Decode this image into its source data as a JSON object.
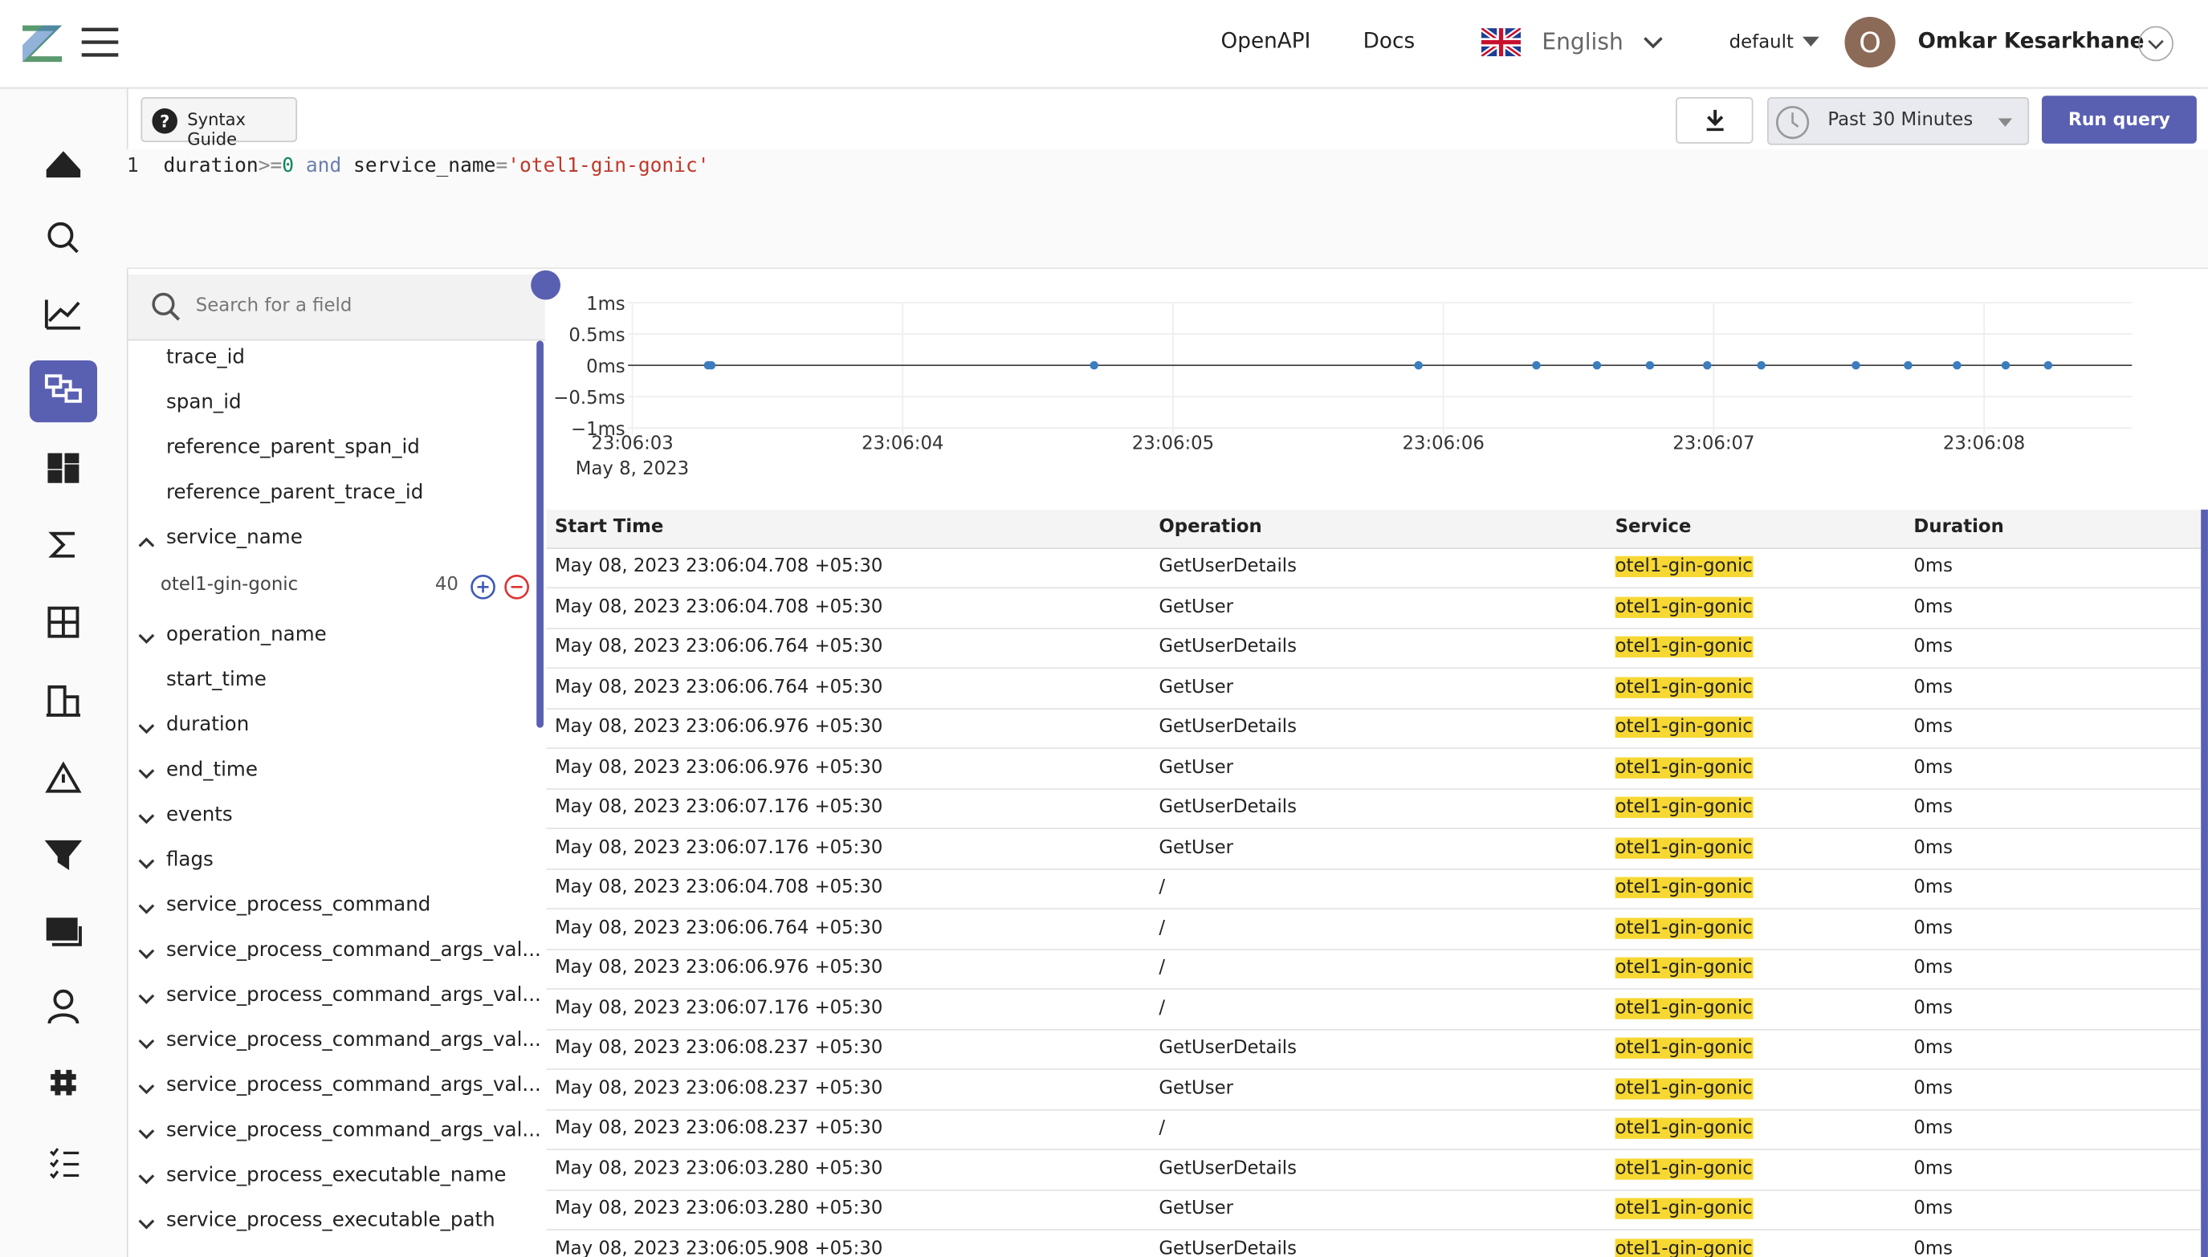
{
  "header": {
    "links": [
      "OpenAPI",
      "Docs"
    ],
    "language": "English",
    "org": "default",
    "avatar": "O",
    "user": "Omkar Kesarkhane"
  },
  "toolbar": {
    "syntax_guide": "Syntax Guide",
    "time_range": "Past 30 Minutes",
    "run": "Run query"
  },
  "query": {
    "line_number": "1",
    "tokens": [
      "duration",
      ">=",
      "0",
      "and",
      "service_name",
      "=",
      "'otel1-gin-gonic'"
    ]
  },
  "fields": {
    "search_placeholder": "Search for a field",
    "items": [
      {
        "name": "trace_id",
        "chevron": "none"
      },
      {
        "name": "span_id",
        "chevron": "none"
      },
      {
        "name": "reference_parent_span_id",
        "chevron": "none"
      },
      {
        "name": "reference_parent_trace_id",
        "chevron": "none"
      },
      {
        "name": "service_name",
        "chevron": "up",
        "value": "otel1-gin-gonic",
        "count": 40
      },
      {
        "name": "operation_name",
        "chevron": "down"
      },
      {
        "name": "start_time",
        "chevron": "none"
      },
      {
        "name": "duration",
        "chevron": "down"
      },
      {
        "name": "end_time",
        "chevron": "down"
      },
      {
        "name": "events",
        "chevron": "down"
      },
      {
        "name": "flags",
        "chevron": "down"
      },
      {
        "name": "service_process_command",
        "chevron": "down"
      },
      {
        "name": "service_process_command_args_val...",
        "chevron": "down"
      },
      {
        "name": "service_process_command_args_val...",
        "chevron": "down"
      },
      {
        "name": "service_process_command_args_val...",
        "chevron": "down"
      },
      {
        "name": "service_process_command_args_val...",
        "chevron": "down"
      },
      {
        "name": "service_process_command_args_val...",
        "chevron": "down"
      },
      {
        "name": "service_process_executable_name",
        "chevron": "down"
      },
      {
        "name": "service_process_executable_path",
        "chevron": "down"
      }
    ]
  },
  "chart_data": {
    "type": "scatter",
    "color": "#3b7dbf",
    "x": [
      "2023-05-08T23:06:03.280",
      "2023-05-08T23:06:03.292",
      "2023-05-08T23:06:04.708",
      "2023-05-08T23:06:05.908",
      "2023-05-08T23:06:06.344",
      "2023-05-08T23:06:06.568",
      "2023-05-08T23:06:06.764",
      "2023-05-08T23:06:06.976",
      "2023-05-08T23:06:07.176",
      "2023-05-08T23:06:07.526",
      "2023-05-08T23:06:07.719",
      "2023-05-08T23:06:07.900",
      "2023-05-08T23:06:08.080",
      "2023-05-08T23:06:08.237"
    ],
    "values": [
      0,
      0,
      0,
      0,
      0,
      0,
      0,
      0,
      0,
      0,
      0,
      0,
      0,
      0
    ],
    "xlim": [
      "2023-05-08T23:06:02.984",
      "2023-05-08T23:06:08.547"
    ],
    "xticks": [
      {
        "value": "2023-05-08T23:06:03",
        "label": "23:06:03"
      },
      {
        "value": "2023-05-08T23:06:04",
        "label": "23:06:04"
      },
      {
        "value": "2023-05-08T23:06:05",
        "label": "23:06:05"
      },
      {
        "value": "2023-05-08T23:06:06",
        "label": "23:06:06"
      },
      {
        "value": "2023-05-08T23:06:07",
        "label": "23:06:07"
      },
      {
        "value": "2023-05-08T23:06:08",
        "label": "23:06:08"
      }
    ],
    "x_date_label": "May 8, 2023",
    "ylim": [
      -1,
      1
    ],
    "yticks": [
      {
        "value": 1,
        "label": "1ms"
      },
      {
        "value": 0.5,
        "label": "0.5ms"
      },
      {
        "value": 0,
        "label": "0ms"
      },
      {
        "value": -0.5,
        "label": "−0.5ms"
      },
      {
        "value": -1,
        "label": "−1ms"
      }
    ],
    "grid": true
  },
  "table": {
    "columns": [
      "Start Time",
      "Operation",
      "Service",
      "Duration"
    ],
    "rows": [
      [
        "May 08, 2023 23:06:04.708 +05:30",
        "GetUserDetails",
        "otel1-gin-gonic",
        "0ms"
      ],
      [
        "May 08, 2023 23:06:04.708 +05:30",
        "GetUser",
        "otel1-gin-gonic",
        "0ms"
      ],
      [
        "May 08, 2023 23:06:06.764 +05:30",
        "GetUserDetails",
        "otel1-gin-gonic",
        "0ms"
      ],
      [
        "May 08, 2023 23:06:06.764 +05:30",
        "GetUser",
        "otel1-gin-gonic",
        "0ms"
      ],
      [
        "May 08, 2023 23:06:06.976 +05:30",
        "GetUserDetails",
        "otel1-gin-gonic",
        "0ms"
      ],
      [
        "May 08, 2023 23:06:06.976 +05:30",
        "GetUser",
        "otel1-gin-gonic",
        "0ms"
      ],
      [
        "May 08, 2023 23:06:07.176 +05:30",
        "GetUserDetails",
        "otel1-gin-gonic",
        "0ms"
      ],
      [
        "May 08, 2023 23:06:07.176 +05:30",
        "GetUser",
        "otel1-gin-gonic",
        "0ms"
      ],
      [
        "May 08, 2023 23:06:04.708 +05:30",
        "/",
        "otel1-gin-gonic",
        "0ms"
      ],
      [
        "May 08, 2023 23:06:06.764 +05:30",
        "/",
        "otel1-gin-gonic",
        "0ms"
      ],
      [
        "May 08, 2023 23:06:06.976 +05:30",
        "/",
        "otel1-gin-gonic",
        "0ms"
      ],
      [
        "May 08, 2023 23:06:07.176 +05:30",
        "/",
        "otel1-gin-gonic",
        "0ms"
      ],
      [
        "May 08, 2023 23:06:08.237 +05:30",
        "GetUserDetails",
        "otel1-gin-gonic",
        "0ms"
      ],
      [
        "May 08, 2023 23:06:08.237 +05:30",
        "GetUser",
        "otel1-gin-gonic",
        "0ms"
      ],
      [
        "May 08, 2023 23:06:08.237 +05:30",
        "/",
        "otel1-gin-gonic",
        "0ms"
      ],
      [
        "May 08, 2023 23:06:03.280 +05:30",
        "GetUserDetails",
        "otel1-gin-gonic",
        "0ms"
      ],
      [
        "May 08, 2023 23:06:03.280 +05:30",
        "GetUser",
        "otel1-gin-gonic",
        "0ms"
      ],
      [
        "May 08, 2023 23:06:05.908 +05:30",
        "GetUserDetails",
        "otel1-gin-gonic",
        "0ms"
      ]
    ]
  }
}
